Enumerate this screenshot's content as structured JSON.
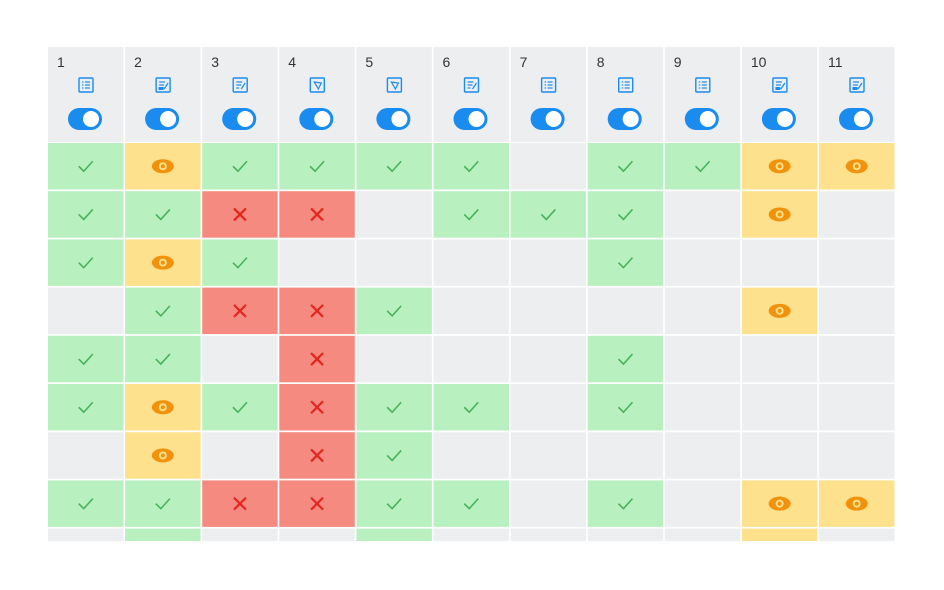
{
  "columns": [
    {
      "label": "1"
    },
    {
      "label": "2"
    },
    {
      "label": "3"
    },
    {
      "label": "4"
    },
    {
      "label": "5"
    },
    {
      "label": "6"
    },
    {
      "label": "7"
    },
    {
      "label": "8"
    },
    {
      "label": "9"
    },
    {
      "label": "10"
    },
    {
      "label": "11"
    }
  ]
}
